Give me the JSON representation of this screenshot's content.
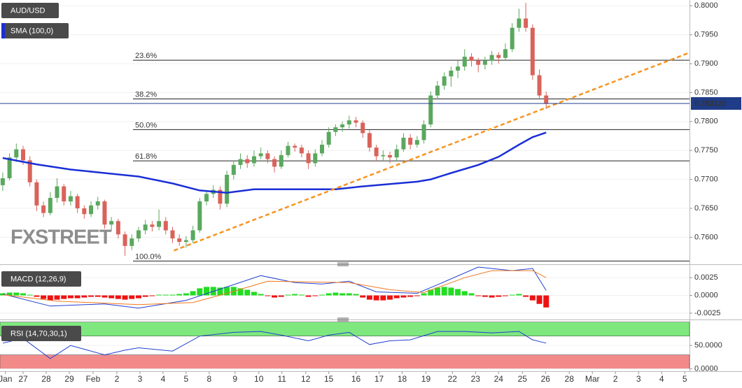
{
  "chart_data": [
    {
      "type": "candlestick",
      "title": "AUD/USD",
      "watermark": "FXSTREET",
      "xlim": [
        -0.4,
        101.1
      ],
      "ylim": [
        0.7557,
        0.801
      ],
      "yticks": [
        {
          "value": 0.8,
          "label": "0.8000"
        },
        {
          "value": 0.795,
          "label": "0.7950"
        },
        {
          "value": 0.79,
          "label": "0.7900"
        },
        {
          "value": 0.785,
          "label": "0.7850"
        },
        {
          "value": 0.78,
          "label": "0.7800"
        },
        {
          "value": 0.775,
          "label": "0.7750"
        },
        {
          "value": 0.77,
          "label": "0.7700"
        },
        {
          "value": 0.765,
          "label": "0.7650"
        },
        {
          "value": 0.76,
          "label": "0.7600"
        }
      ],
      "up_color": "#5aa85e",
      "down_color": "#d9635a",
      "candles": [
        [
          0.769,
          0.7712,
          0.768,
          0.7702
        ],
        [
          0.7702,
          0.7745,
          0.7698,
          0.7738
        ],
        [
          0.7738,
          0.7762,
          0.773,
          0.7752
        ],
        [
          0.7752,
          0.7758,
          0.7725,
          0.7733
        ],
        [
          0.7733,
          0.774,
          0.7688,
          0.7695
        ],
        [
          0.7695,
          0.77,
          0.7645,
          0.7655
        ],
        [
          0.7655,
          0.7662,
          0.7635,
          0.7642
        ],
        [
          0.7642,
          0.7678,
          0.7638,
          0.7668
        ],
        [
          0.7668,
          0.7702,
          0.766,
          0.7688
        ],
        [
          0.7688,
          0.7692,
          0.7655,
          0.7662
        ],
        [
          0.7662,
          0.768,
          0.7655,
          0.7671
        ],
        [
          0.7671,
          0.7675,
          0.7642,
          0.765
        ],
        [
          0.765,
          0.7655,
          0.7632,
          0.764
        ],
        [
          0.764,
          0.7662,
          0.7635,
          0.7655
        ],
        [
          0.7655,
          0.767,
          0.7648,
          0.7662
        ],
        [
          0.7662,
          0.7665,
          0.7615,
          0.7622
        ],
        [
          0.7622,
          0.7635,
          0.7612,
          0.7628
        ],
        [
          0.7628,
          0.7632,
          0.7598,
          0.7605
        ],
        [
          0.7605,
          0.761,
          0.7568,
          0.7585
        ],
        [
          0.7585,
          0.7605,
          0.7578,
          0.7598
        ],
        [
          0.7598,
          0.7618,
          0.7592,
          0.7612
        ],
        [
          0.7612,
          0.763,
          0.7605,
          0.7622
        ],
        [
          0.7622,
          0.7628,
          0.761,
          0.7618
        ],
        [
          0.7618,
          0.7648,
          0.7612,
          0.7628
        ],
        [
          0.7628,
          0.7635,
          0.7605,
          0.7612
        ],
        [
          0.7612,
          0.7618,
          0.759,
          0.7598
        ],
        [
          0.7598,
          0.7605,
          0.7585,
          0.7592
        ],
        [
          0.7592,
          0.7602,
          0.7582,
          0.7595
        ],
        [
          0.7595,
          0.762,
          0.759,
          0.7612
        ],
        [
          0.7612,
          0.7668,
          0.7608,
          0.7662
        ],
        [
          0.7662,
          0.7682,
          0.7655,
          0.7675
        ],
        [
          0.7675,
          0.769,
          0.7668,
          0.7682
        ],
        [
          0.7682,
          0.7688,
          0.7648,
          0.7658
        ],
        [
          0.7658,
          0.7715,
          0.7652,
          0.7708
        ],
        [
          0.7708,
          0.7732,
          0.77,
          0.7725
        ],
        [
          0.7725,
          0.7745,
          0.7718,
          0.7735
        ],
        [
          0.7735,
          0.7742,
          0.772,
          0.7728
        ],
        [
          0.7728,
          0.775,
          0.7722,
          0.774
        ],
        [
          0.774,
          0.7755,
          0.7735,
          0.7745
        ],
        [
          0.7745,
          0.775,
          0.7728,
          0.7735
        ],
        [
          0.7735,
          0.774,
          0.7712,
          0.7722
        ],
        [
          0.7722,
          0.775,
          0.7718,
          0.7742
        ],
        [
          0.7742,
          0.7765,
          0.7738,
          0.7758
        ],
        [
          0.7758,
          0.7762,
          0.7748,
          0.7755
        ],
        [
          0.7755,
          0.776,
          0.7738,
          0.7745
        ],
        [
          0.7745,
          0.775,
          0.7718,
          0.7728
        ],
        [
          0.7728,
          0.7752,
          0.7722,
          0.7745
        ],
        [
          0.7745,
          0.7768,
          0.774,
          0.776
        ],
        [
          0.776,
          0.779,
          0.7755,
          0.7782
        ],
        [
          0.7782,
          0.7795,
          0.7775,
          0.779
        ],
        [
          0.779,
          0.78,
          0.7782,
          0.7795
        ],
        [
          0.7795,
          0.781,
          0.7788,
          0.7802
        ],
        [
          0.7802,
          0.7808,
          0.779,
          0.7798
        ],
        [
          0.7798,
          0.7802,
          0.7772,
          0.778
        ],
        [
          0.778,
          0.7785,
          0.7748,
          0.7755
        ],
        [
          0.7755,
          0.776,
          0.7732,
          0.774
        ],
        [
          0.774,
          0.775,
          0.7732,
          0.7742
        ],
        [
          0.7742,
          0.7748,
          0.7728,
          0.7738
        ],
        [
          0.7738,
          0.776,
          0.7732,
          0.7752
        ],
        [
          0.7752,
          0.778,
          0.7748,
          0.7772
        ],
        [
          0.7772,
          0.7778,
          0.7752,
          0.776
        ],
        [
          0.776,
          0.7775,
          0.7755,
          0.7768
        ],
        [
          0.7768,
          0.7802,
          0.7762,
          0.7795
        ],
        [
          0.7795,
          0.7852,
          0.779,
          0.7845
        ],
        [
          0.7845,
          0.787,
          0.7838,
          0.7862
        ],
        [
          0.7862,
          0.7885,
          0.7855,
          0.7878
        ],
        [
          0.7878,
          0.7895,
          0.786,
          0.7888
        ],
        [
          0.7888,
          0.7905,
          0.7875,
          0.7895
        ],
        [
          0.7895,
          0.7925,
          0.7888,
          0.7912
        ],
        [
          0.7912,
          0.7918,
          0.7895,
          0.7905
        ],
        [
          0.7905,
          0.791,
          0.7885,
          0.7898
        ],
        [
          0.7898,
          0.7912,
          0.789,
          0.7905
        ],
        [
          0.7905,
          0.7922,
          0.7898,
          0.7915
        ],
        [
          0.7915,
          0.792,
          0.79,
          0.791
        ],
        [
          0.791,
          0.7935,
          0.7905,
          0.7925
        ],
        [
          0.7925,
          0.797,
          0.792,
          0.7962
        ],
        [
          0.7962,
          0.7995,
          0.7955,
          0.7978
        ],
        [
          0.7978,
          0.8005,
          0.7955,
          0.7962
        ],
        [
          0.7962,
          0.7968,
          0.7872,
          0.788
        ],
        [
          0.788,
          0.789,
          0.7838,
          0.7845
        ],
        [
          0.7845,
          0.7852,
          0.7822,
          0.7831
        ]
      ],
      "sma": {
        "name": "SMA (100,0)",
        "color": "#1a2fd6",
        "x": [
          0,
          5,
          10,
          15,
          20,
          25,
          29,
          33,
          37,
          41,
          45,
          49,
          53,
          57,
          61,
          63,
          66,
          70,
          73,
          76,
          78,
          80
        ],
        "values": [
          0.7737,
          0.7726,
          0.7717,
          0.7711,
          0.7705,
          0.7693,
          0.7681,
          0.7677,
          0.7683,
          0.7683,
          0.7683,
          0.7683,
          0.7688,
          0.7692,
          0.7696,
          0.77,
          0.7711,
          0.7725,
          0.7739,
          0.776,
          0.7773,
          0.7781
        ]
      },
      "trendline": {
        "color": "#f7931e",
        "x": [
          25.2,
          101.1
        ],
        "values": [
          0.7577,
          0.7919
        ]
      },
      "fib_levels": [
        {
          "label": "23.6%",
          "value": 0.7906
        },
        {
          "label": "38.2%",
          "value": 0.7839
        },
        {
          "label": "50.0%",
          "value": 0.7786
        },
        {
          "label": "61.8%",
          "value": 0.7732
        },
        {
          "label": "100.0%",
          "value": 0.7559
        }
      ],
      "last_price": {
        "value": 0.78312,
        "label": "0.783120",
        "color": "#1f3c88"
      }
    },
    {
      "type": "macd",
      "title": "MACD (12,26,9)",
      "xlim": [
        -0.4,
        101.1
      ],
      "ylim": [
        -0.0032,
        0.0039
      ],
      "yticks": [
        {
          "value": 0.0025,
          "label": "0.0025"
        },
        {
          "value": 0,
          "label": "0.0000"
        },
        {
          "value": -0.0025,
          "label": "-0.0025"
        }
      ],
      "pos_color": "#22dd22",
      "neg_color": "#ee1111",
      "histogram": [
        0.0003,
        0.0004,
        0.0004,
        0.0003,
        0.0001,
        -0.0002,
        -0.0005,
        -0.0007,
        -0.0006,
        -0.0005,
        -0.0004,
        -0.0004,
        -0.0003,
        -0.0002,
        -0.0002,
        -0.0003,
        -0.0004,
        -0.0005,
        -0.0006,
        -0.0005,
        -0.0004,
        -0.0002,
        -0.0001,
        0.0001,
        0.0001,
        0.0001,
        0.0002,
        0.0003,
        0.0006,
        0.001,
        0.0012,
        0.0012,
        0.0011,
        0.0012,
        0.0012,
        0.001,
        0.0008,
        0.0005,
        0.0002,
        -0.0001,
        -0.0003,
        -0.0002,
        0.0001,
        0.0002,
        0.0001,
        -0.0002,
        -0.0001,
        0.0001,
        0.0003,
        0.0004,
        0.0003,
        0.0003,
        0.0002,
        -0.0003,
        -0.0006,
        -0.0007,
        -0.0007,
        -0.0006,
        -0.0004,
        -0.0003,
        -0.0002,
        -0.0001,
        0.0003,
        0.0008,
        0.0011,
        0.0012,
        0.0011,
        0.0009,
        0.0006,
        0.0003,
        -0.0001,
        -0.0002,
        -0.0003,
        -0.0002,
        -0.0001,
        0.0001,
        0.0002,
        -0.0002,
        -0.0007,
        -0.0012,
        -0.0017
      ],
      "series": [
        {
          "color": "#2040d0",
          "x": [
            0,
            7,
            15,
            20,
            27,
            33,
            38,
            43,
            47,
            51,
            55,
            61,
            64,
            70,
            75,
            78,
            80
          ],
          "values": [
            0.0002,
            -0.0015,
            -0.0012,
            -0.0018,
            -0.0007,
            0.0012,
            0.0028,
            0.0018,
            0.0016,
            0.002,
            0.0005,
            0.0003,
            0.0015,
            0.004,
            0.0035,
            0.0038,
            0.0007
          ]
        },
        {
          "color": "#f07820",
          "x": [
            0,
            8,
            20,
            28,
            33,
            39,
            45,
            51,
            57,
            62,
            68,
            72,
            78,
            80
          ],
          "values": [
            0.0001,
            -0.0008,
            -0.0013,
            -0.001,
            0.0003,
            0.002,
            0.0019,
            0.0018,
            0.0008,
            0.0004,
            0.0025,
            0.0035,
            0.0035,
            0.0025
          ]
        }
      ]
    },
    {
      "type": "rsi",
      "title": "RSI (14,70,30,1)",
      "xlim": [
        -0.4,
        101.1
      ],
      "ylim": [
        -5,
        101
      ],
      "yticks": [
        {
          "value": 50,
          "label": "50.0000"
        },
        {
          "value": 0,
          "label": "0.0000"
        }
      ],
      "bands": [
        {
          "range": [
            70,
            100
          ],
          "color": "#7ee87e"
        },
        {
          "range": [
            0,
            30
          ],
          "color": "#f28a8a"
        }
      ],
      "series": [
        {
          "color": "#2040d0",
          "x": [
            0,
            3,
            7,
            10,
            15,
            18,
            20,
            25,
            29,
            34,
            38,
            41,
            45,
            48,
            51,
            54,
            57,
            60,
            64,
            68,
            72,
            76,
            78,
            80
          ],
          "values": [
            55,
            65,
            22,
            50,
            30,
            40,
            45,
            38,
            70,
            78,
            80,
            72,
            60,
            72,
            78,
            52,
            60,
            62,
            80,
            80,
            77,
            80,
            62,
            55
          ]
        }
      ],
      "xticks": [
        {
          "value": 0.4,
          "label": "Jan"
        },
        {
          "value": 3.0,
          "label": "27"
        },
        {
          "value": 6.4,
          "label": "28"
        },
        {
          "value": 9.8,
          "label": "29"
        },
        {
          "value": 13.3,
          "label": "Feb"
        },
        {
          "value": 16.8,
          "label": "2"
        },
        {
          "value": 20.2,
          "label": "3"
        },
        {
          "value": 23.6,
          "label": "4"
        },
        {
          "value": 27.0,
          "label": "5"
        },
        {
          "value": 30.4,
          "label": "8"
        },
        {
          "value": 34.2,
          "label": "9"
        },
        {
          "value": 37.7,
          "label": "10"
        },
        {
          "value": 41.1,
          "label": "11"
        },
        {
          "value": 44.6,
          "label": "12"
        },
        {
          "value": 48.0,
          "label": "15"
        },
        {
          "value": 52.0,
          "label": "16"
        },
        {
          "value": 55.4,
          "label": "17"
        },
        {
          "value": 58.8,
          "label": "18"
        },
        {
          "value": 62.3,
          "label": "19"
        },
        {
          "value": 66.2,
          "label": "22"
        },
        {
          "value": 69.6,
          "label": "23"
        },
        {
          "value": 73.0,
          "label": "24"
        },
        {
          "value": 76.5,
          "label": "25"
        },
        {
          "value": 79.9,
          "label": "26"
        },
        {
          "value": 83.4,
          "label": "28"
        },
        {
          "value": 86.8,
          "label": "Mar"
        },
        {
          "value": 90.2,
          "label": "2"
        },
        {
          "value": 93.6,
          "label": "3"
        },
        {
          "value": 97.0,
          "label": "4"
        },
        {
          "value": 100.4,
          "label": "5"
        }
      ]
    }
  ]
}
